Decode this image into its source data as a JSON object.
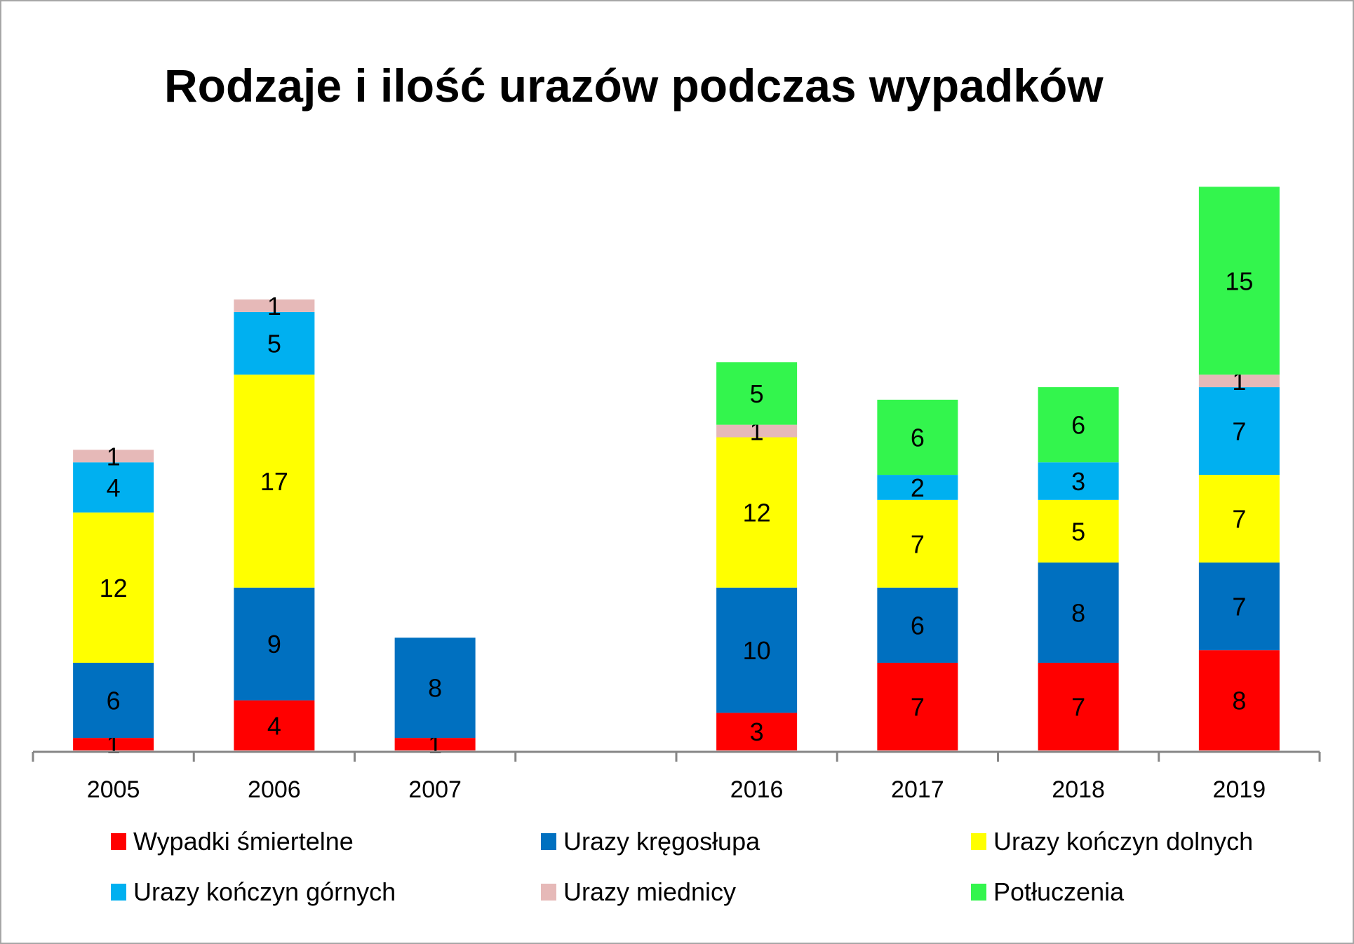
{
  "chart_data": {
    "type": "bar",
    "stacked": true,
    "title": "Rodzaje i ilość urazów podczas wypadków",
    "categories": [
      "2005",
      "2006",
      "2007",
      "",
      "2016",
      "2017",
      "2018",
      "2019"
    ],
    "series": [
      {
        "name": "Wypadki śmiertelne",
        "color": "#FF0000",
        "values": [
          1,
          4,
          1,
          null,
          3,
          7,
          7,
          8
        ]
      },
      {
        "name": "Urazy kręgosłupa",
        "color": "#0070C0",
        "values": [
          6,
          9,
          8,
          null,
          10,
          6,
          8,
          7
        ]
      },
      {
        "name": "Urazy kończyn dolnych",
        "color": "#FFFF00",
        "values": [
          12,
          17,
          null,
          null,
          12,
          7,
          5,
          7
        ]
      },
      {
        "name": "Urazy kończyn górnych",
        "color": "#00B0F0",
        "values": [
          4,
          5,
          null,
          null,
          null,
          2,
          3,
          7
        ]
      },
      {
        "name": "Urazy miednicy",
        "color": "#E6B9B8",
        "values": [
          1,
          1,
          null,
          null,
          1,
          null,
          null,
          1
        ]
      },
      {
        "name": "Potłuczenia",
        "color": "#33F54D",
        "values": [
          null,
          null,
          null,
          null,
          5,
          6,
          6,
          15
        ]
      }
    ],
    "data_labels": true,
    "grid": false,
    "legend_position": "bottom",
    "ylim": [
      0,
      45
    ]
  }
}
